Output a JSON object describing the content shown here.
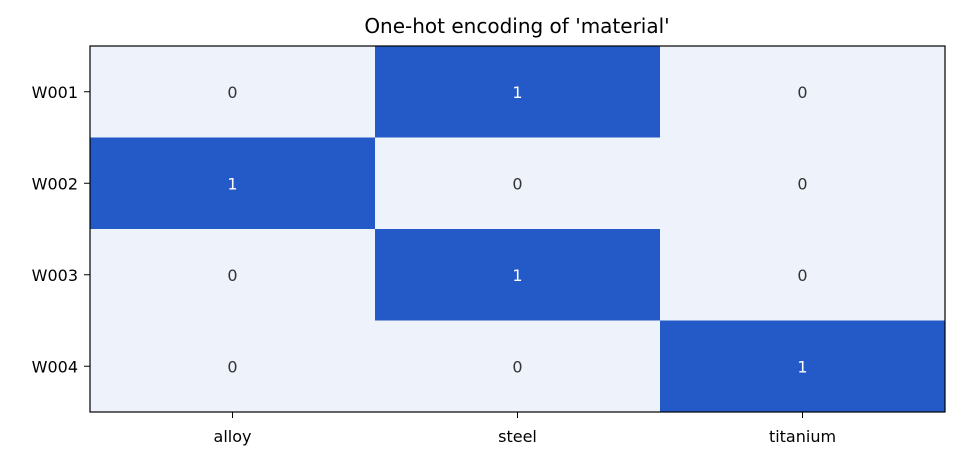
{
  "chart_data": {
    "type": "heatmap",
    "title": "One-hot encoding of 'material'",
    "xlabel": "",
    "ylabel": "",
    "x_categories": [
      "alloy",
      "steel",
      "titanium"
    ],
    "y_categories": [
      "W001",
      "W002",
      "W003",
      "W004"
    ],
    "values": [
      [
        0,
        1,
        0
      ],
      [
        1,
        0,
        0
      ],
      [
        0,
        1,
        0
      ],
      [
        0,
        0,
        1
      ]
    ],
    "value_range": [
      0,
      1
    ],
    "grid": false,
    "legend": "none",
    "colors": {
      "low": "#eef2fa",
      "high": "#2459c8",
      "label_on_low": "#333333",
      "label_on_high": "#ffffff"
    }
  }
}
